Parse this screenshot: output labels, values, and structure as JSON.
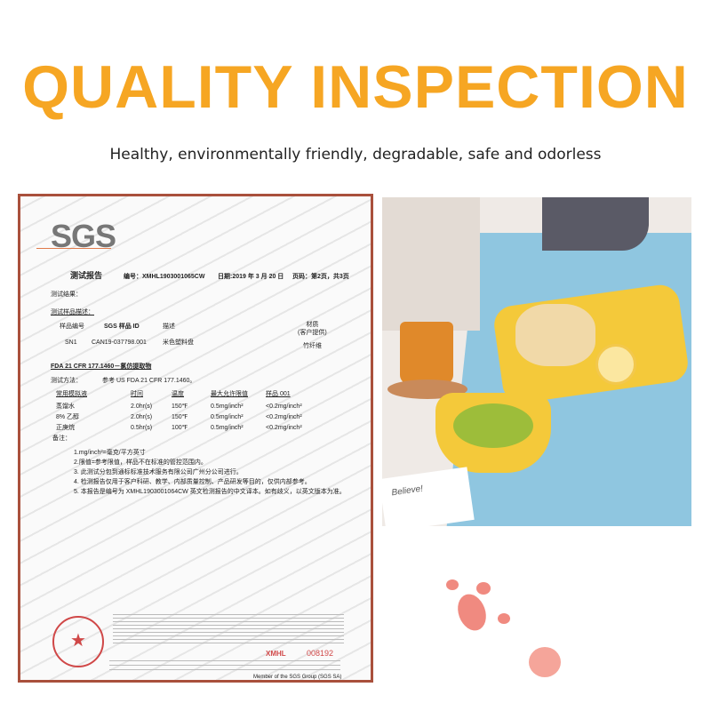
{
  "header": {
    "title": "QUALITY INSPECTION",
    "subtitle": "Healthy, environmentally friendly, degradable, safe and odorless"
  },
  "colors": {
    "title": "#f6a623",
    "frame": "#a9503c",
    "stamp": "#d04848"
  },
  "certificate": {
    "logo": "SGS",
    "watermark": "SGS",
    "report_title": "测试报告",
    "report_no": "编号：XMHL1903001065CW",
    "date": "日期:2019 年 3 月 20 日",
    "page": "页码：第2页，共3页",
    "results_label": "测试结果：",
    "sample_desc_label": "测试样品描述：",
    "sample_headers": [
      "样品编号",
      "SGS 样品 ID",
      "描述",
      "材质\n(客户提供)"
    ],
    "sample_row": [
      "SN1",
      "CAN19-037798.001",
      "米色塑料盘",
      "竹纤维"
    ],
    "section": "FDA 21 CFR 177.1460－氯仿提取物",
    "method_label": "测试方法：",
    "method": "参考 US FDA 21 CFR 177.1460。",
    "table_headers": [
      "常用模拟液",
      "时间",
      "温度",
      "最大允许限值",
      "样品 001"
    ],
    "table_rows": [
      [
        "蒸馏水",
        "2.0hr(s)",
        "150℉",
        "0.5mg/inch²",
        "<0.2mg/inch²"
      ],
      [
        "8% 乙醇",
        "2.0hr(s)",
        "150℉",
        "0.5mg/inch²",
        "<0.2mg/inch²"
      ],
      [
        "正庚烷",
        "0.5hr(s)",
        "100℉",
        "0.5mg/inch²",
        "<0.2mg/inch²"
      ]
    ],
    "notes_label": "备注：",
    "notes": [
      "1.mg/inch²=毫克/平方英寸",
      "2.限值=参考限值，样品不在标准的管控范围内。",
      "3. 此测试分包到通标标准技术服务有限公司广州分公司进行。",
      "4. 检测报告仅用于客户科研、教学、内部质量控制、产品研发等目的，仅供内部参考。",
      "5. 本报告是编号为 XMHL1903001064CW 英文检测报告的中文译本。如有歧义，以英文版本为准。"
    ],
    "serial_code": "XMHL",
    "serial_no": "008192",
    "member": "Member of the SGS Group (SGS SA)"
  },
  "photo": {
    "note_text": "Believe!"
  }
}
